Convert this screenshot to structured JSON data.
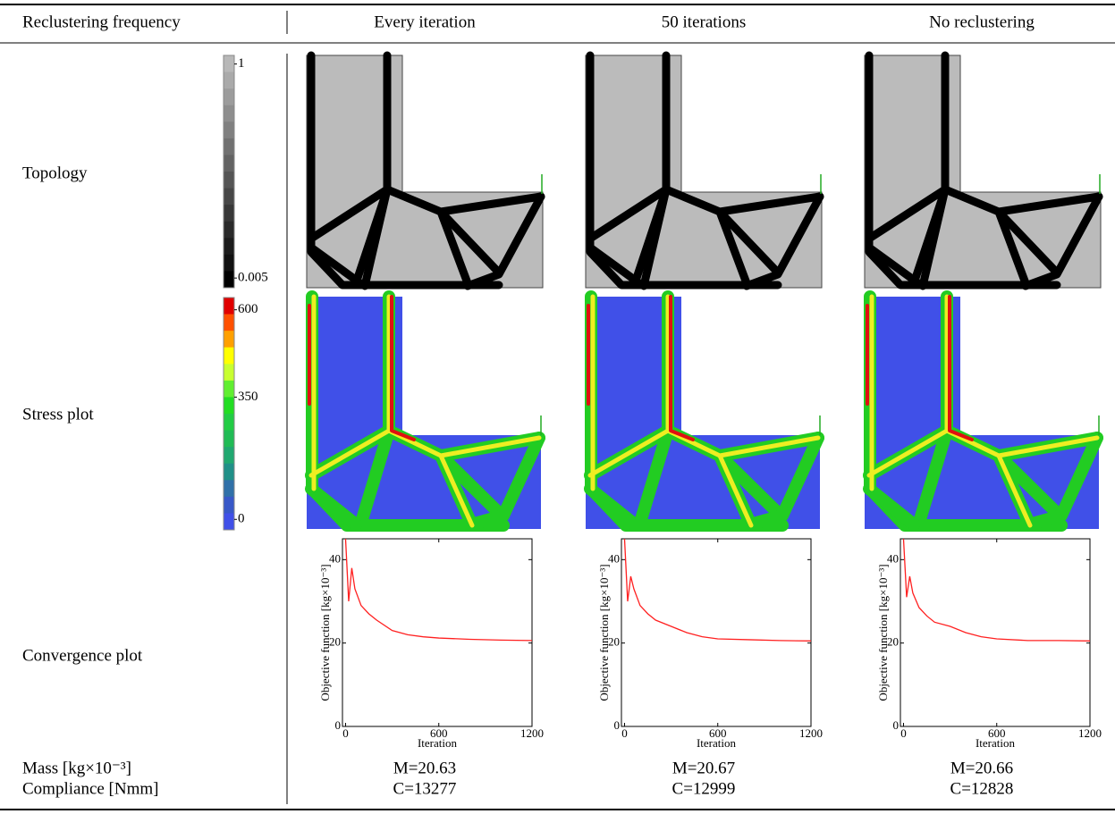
{
  "header": [
    "Reclustering frequency",
    "Every iteration",
    "50 iterations",
    "No reclustering"
  ],
  "row_labels": [
    "Topology",
    "Stress plot",
    "Convergence plot"
  ],
  "results": {
    "labels": [
      "Mass [kg×10⁻³]",
      "Compliance [Nmm]"
    ],
    "mass": [
      "M=20.63",
      "M=20.67",
      "M=20.66"
    ],
    "compliance": [
      "C=13277",
      "C=12999",
      "C=12828"
    ]
  },
  "colorbars": {
    "density": {
      "ticks": [
        1,
        0.005
      ],
      "lim": [
        -0.04,
        1.04
      ]
    },
    "stress": {
      "ticks": [
        600,
        350,
        0
      ],
      "lim": [
        -30,
        635
      ]
    }
  },
  "convergence": [
    {
      "type": "line",
      "xlabel": "Iteration",
      "ylabel": "Objective function [kg×10⁻³]",
      "color": "#ff2020",
      "xlim": [
        -20,
        1200
      ],
      "ylim": [
        0,
        45
      ],
      "xticks": [
        0,
        600,
        1200
      ],
      "yticks": [
        0,
        20,
        40
      ],
      "x": [
        0,
        20,
        40,
        60,
        100,
        150,
        200,
        300,
        400,
        500,
        600,
        800,
        1000,
        1200
      ],
      "values": [
        45,
        30,
        38,
        33,
        29,
        27,
        25.5,
        23,
        22,
        21.5,
        21.2,
        20.9,
        20.7,
        20.6
      ]
    },
    {
      "type": "line",
      "xlabel": "Iteration",
      "ylabel": "Objective function [kg×10⁻³]",
      "color": "#ff2020",
      "xlim": [
        -20,
        1200
      ],
      "ylim": [
        0,
        45
      ],
      "xticks": [
        0,
        600,
        1200
      ],
      "yticks": [
        0,
        20,
        40
      ],
      "x": [
        0,
        20,
        40,
        60,
        100,
        150,
        200,
        300,
        400,
        500,
        600,
        800,
        1000,
        1200
      ],
      "values": [
        45,
        30,
        36,
        33,
        29,
        27,
        25.5,
        24,
        22.5,
        21.5,
        21,
        20.8,
        20.6,
        20.5
      ]
    },
    {
      "type": "line",
      "xlabel": "Iteration",
      "ylabel": "Objective function [kg×10⁻³]",
      "color": "#ff2020",
      "xlim": [
        -20,
        1200
      ],
      "ylim": [
        0,
        45
      ],
      "xticks": [
        0,
        600,
        1200
      ],
      "yticks": [
        0,
        20,
        40
      ],
      "x": [
        0,
        20,
        40,
        60,
        100,
        150,
        200,
        300,
        400,
        500,
        600,
        800,
        1000,
        1200
      ],
      "values": [
        45,
        31,
        36,
        32,
        28.5,
        26.5,
        25,
        24,
        22.5,
        21.5,
        21,
        20.6,
        20.6,
        20.5
      ]
    }
  ]
}
